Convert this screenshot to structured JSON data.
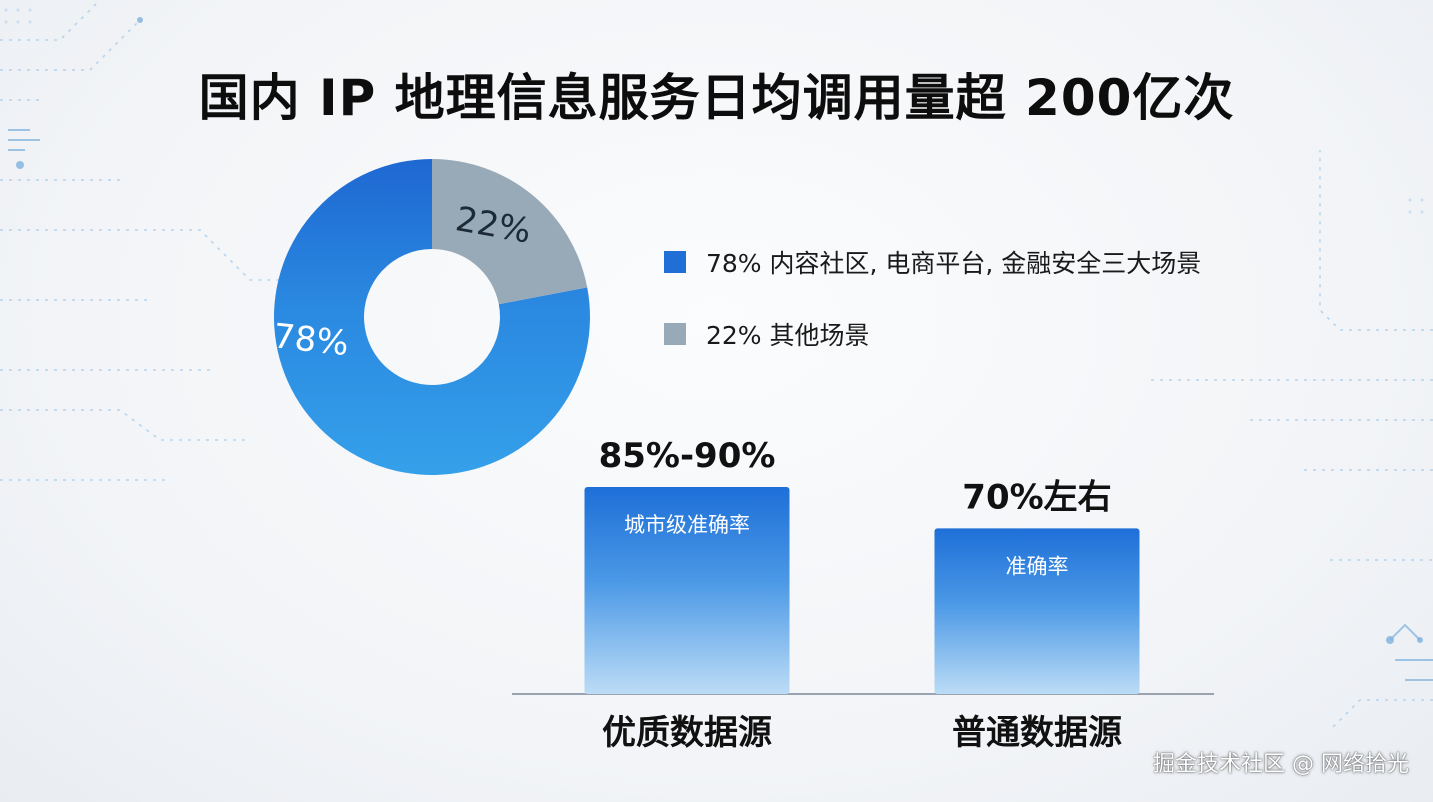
{
  "title": "国内 IP 地理信息服务日均调用量超 200亿次",
  "colors": {
    "blue_dark": "#1f6fd6",
    "blue_light": "#2f97e3",
    "gray": "#98a9b8",
    "bar_top": "#1e6fd8",
    "bar_bottom": "#b7d9f5",
    "baseline": "#9aa4b0"
  },
  "chart_data": [
    {
      "type": "pie",
      "style": "donut",
      "slices": [
        {
          "label": "78%",
          "value": 78,
          "color": "#2a8be0"
        },
        {
          "label": "22%",
          "value": 22,
          "color": "#98a9b8"
        }
      ],
      "legend": [
        {
          "text": "78% 内容社区, 电商平台, 金融安全三大场景",
          "color": "#1f6fd6"
        },
        {
          "text": "22% 其他场景",
          "color": "#98a9b8"
        }
      ],
      "legend_position": "right"
    },
    {
      "type": "bar",
      "categories": [
        "优质数据源",
        "普通数据源"
      ],
      "values": [
        87.5,
        70
      ],
      "value_labels": [
        "85%-90%",
        "70%左右"
      ],
      "inner_labels": [
        "城市级准确率",
        "准确率"
      ],
      "ylim": [
        0,
        87.5
      ]
    }
  ],
  "watermark": "掘金技术社区 @ 网络拾光"
}
